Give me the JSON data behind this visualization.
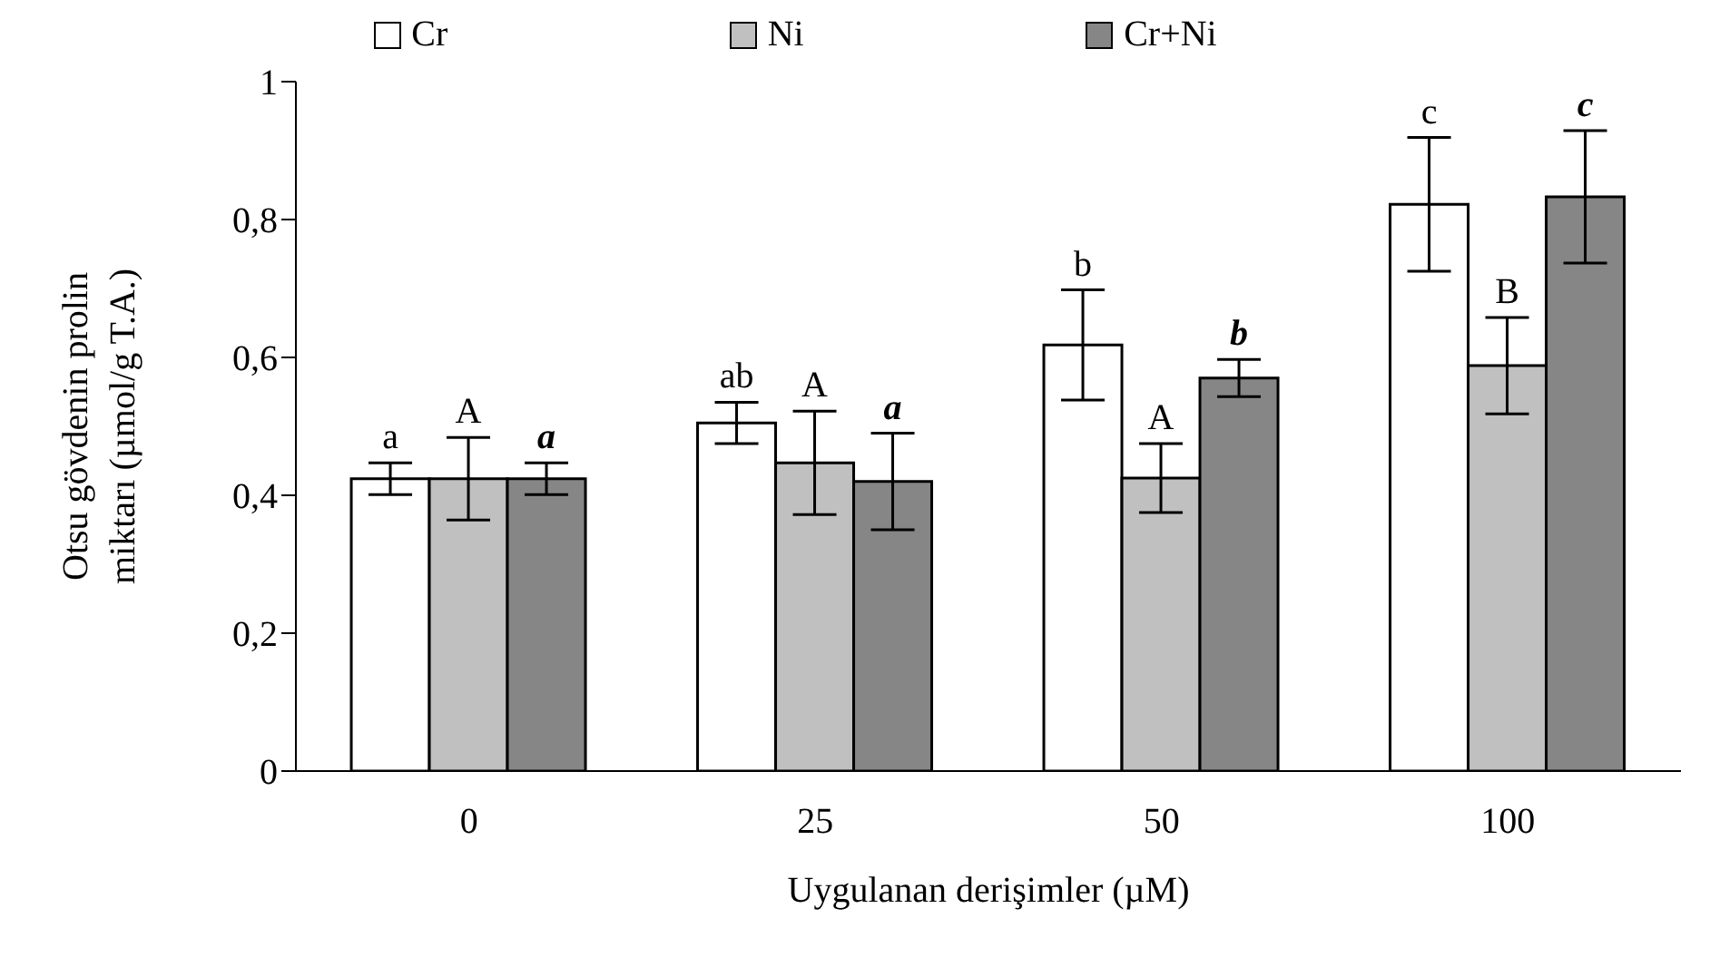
{
  "chart_data": {
    "type": "bar",
    "ylabel": "Otsu gövdenin prolin miktarı (µmol/g T.A.)",
    "xlabel": "Uygulanan derişimler (µM)",
    "categories": [
      "0",
      "25",
      "50",
      "100"
    ],
    "series": [
      {
        "name": "Cr",
        "color": "#ffffff",
        "values": [
          0.424,
          0.505,
          0.618,
          0.822
        ],
        "errors": [
          0.023,
          0.03,
          0.08,
          0.097
        ],
        "value_labels": [
          "a",
          "ab",
          "b",
          "c"
        ]
      },
      {
        "name": "Ni",
        "color": "#c0c0c0",
        "values": [
          0.424,
          0.447,
          0.425,
          0.588
        ],
        "errors": [
          0.06,
          0.075,
          0.05,
          0.07
        ],
        "value_labels": [
          "A",
          "A",
          "A",
          "B"
        ]
      },
      {
        "name": "Cr+Ni",
        "color": "#868686",
        "values": [
          0.424,
          0.42,
          0.57,
          0.833
        ],
        "errors": [
          0.023,
          0.07,
          0.027,
          0.096
        ],
        "value_labels": [
          "a",
          "a",
          "b",
          "c"
        ]
      }
    ],
    "ylim": [
      0,
      1
    ],
    "yticks": [
      {
        "value": 0,
        "label": "0"
      },
      {
        "value": 0.2,
        "label": "0,2"
      },
      {
        "value": 0.4,
        "label": "0,4"
      },
      {
        "value": 0.6,
        "label": "0,6"
      },
      {
        "value": 0.8,
        "label": "0,8"
      },
      {
        "value": 1,
        "label": "1"
      }
    ],
    "grid": false,
    "legend": "top"
  }
}
